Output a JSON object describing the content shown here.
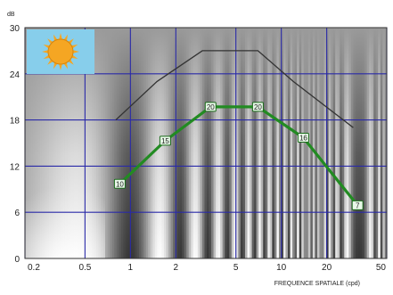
{
  "chart_data": {
    "type": "line",
    "title": "",
    "ylabel": "dB",
    "xlabel": "FREQUENCE SPATIALE (cpd)",
    "x_scale": "log",
    "xlim": [
      0.2,
      50
    ],
    "ylim": [
      0,
      30
    ],
    "x_ticks": [
      0.2,
      0.5,
      1,
      2,
      5,
      10,
      20,
      50
    ],
    "x_tick_labels": [
      "0.2",
      "0.5",
      "1",
      "2",
      "5",
      "10",
      "20",
      "50"
    ],
    "y_ticks": [
      0,
      6,
      12,
      18,
      24,
      30
    ],
    "y_tick_labels": [
      "0",
      "6",
      "12",
      "18",
      "24",
      "30"
    ],
    "grid": true,
    "legend": "none",
    "icon": "sun-icon",
    "colors": {
      "grid": "#2a2aa8",
      "series_main": "#228b22",
      "series_reference": "#333333",
      "icon_background": "#87ceeb",
      "sun": "#f5a623",
      "marker_fill": "#e8f8e8",
      "marker_stroke": "#1b6b1b"
    },
    "series": [
      {
        "x": [
          0.85,
          1.7,
          3.4,
          7,
          14,
          32
        ],
        "y": [
          9.7,
          15.3,
          19.7,
          19.7,
          15.7,
          6.9
        ],
        "labels": [
          "10",
          "15",
          "20",
          "20",
          "16",
          "7"
        ],
        "markers": true
      },
      {
        "x": [
          0.8,
          1.5,
          3,
          4,
          7,
          12,
          30
        ],
        "y": [
          18,
          23,
          27,
          27,
          27,
          23,
          17
        ]
      }
    ]
  }
}
